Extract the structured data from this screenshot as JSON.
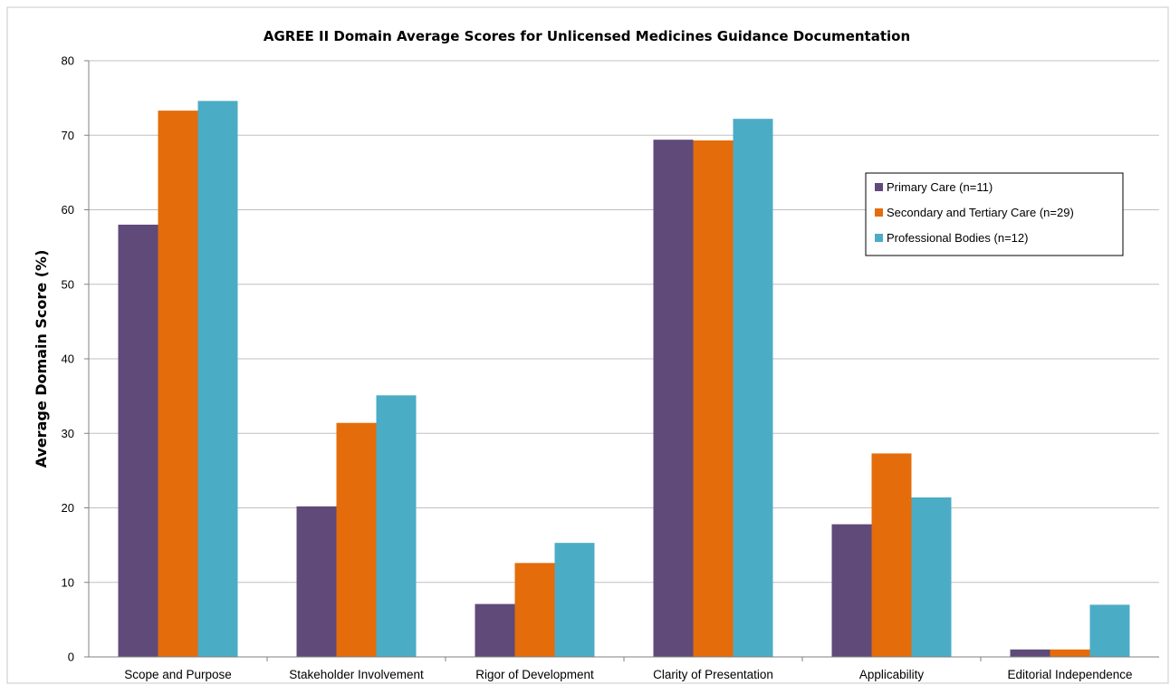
{
  "chart_data": {
    "type": "bar",
    "title": "AGREE II Domain Average Scores for Unlicensed Medicines Guidance Documentation",
    "xlabel": "",
    "ylabel": "Average Domain Score (%)",
    "ylim": [
      0,
      80
    ],
    "yticks": [
      "0",
      "10",
      "20",
      "30",
      "40",
      "50",
      "60",
      "70",
      "80"
    ],
    "grid": true,
    "legend_position": "right",
    "categories": [
      "Scope and Purpose",
      "Stakeholder Involvement",
      "Rigor of Development",
      "Clarity of Presentation",
      "Applicability",
      "Editorial Independence"
    ],
    "series": [
      {
        "name": "Primary Care (n=11)",
        "color": "#5f4a7a",
        "values": [
          58.0,
          20.2,
          7.1,
          69.4,
          17.8,
          1.0
        ]
      },
      {
        "name": "Secondary and Tertiary Care (n=29)",
        "color": "#e46c0a",
        "values": [
          73.3,
          31.4,
          12.6,
          69.3,
          27.3,
          1.0
        ]
      },
      {
        "name": "Professional Bodies (n=12)",
        "color": "#4bacc6",
        "values": [
          74.6,
          35.1,
          15.3,
          72.2,
          21.4,
          7.0
        ]
      }
    ]
  }
}
